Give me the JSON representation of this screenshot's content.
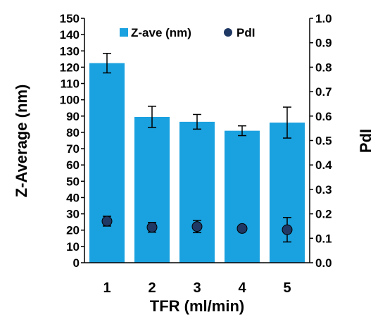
{
  "chart_data": {
    "type": "bar",
    "categories": [
      "1",
      "2",
      "3",
      "4",
      "5"
    ],
    "xlabel": "TFR (ml/min)",
    "ylabel": "Z-Average (nm)",
    "ylabel_right": "PdI",
    "ylim": [
      0,
      150
    ],
    "ylim_right": [
      0.0,
      1.0
    ],
    "yticks": [
      "0",
      "10",
      "20",
      "30",
      "40",
      "50",
      "60",
      "70",
      "80",
      "90",
      "100",
      "110",
      "120",
      "130",
      "140",
      "150"
    ],
    "yticks_right": [
      "0.0",
      "0.1",
      "0.2",
      "0.3",
      "0.4",
      "0.5",
      "0.6",
      "0.7",
      "0.8",
      "0.9",
      "1.0"
    ],
    "grid": false,
    "legend_position": "top",
    "series": [
      {
        "name": "Z-ave (nm)",
        "type": "bar",
        "axis": "left",
        "color": "#1aa1df",
        "values": [
          122.5,
          89.5,
          86.5,
          81,
          86
        ],
        "errors": [
          6,
          6.5,
          4.5,
          3,
          9.5
        ]
      },
      {
        "name": "PdI",
        "type": "scatter",
        "axis": "right",
        "color": "#1f3864",
        "values": [
          0.17,
          0.145,
          0.148,
          0.14,
          0.135
        ],
        "errors": [
          0.02,
          0.02,
          0.025,
          0.01,
          0.05
        ]
      }
    ]
  }
}
